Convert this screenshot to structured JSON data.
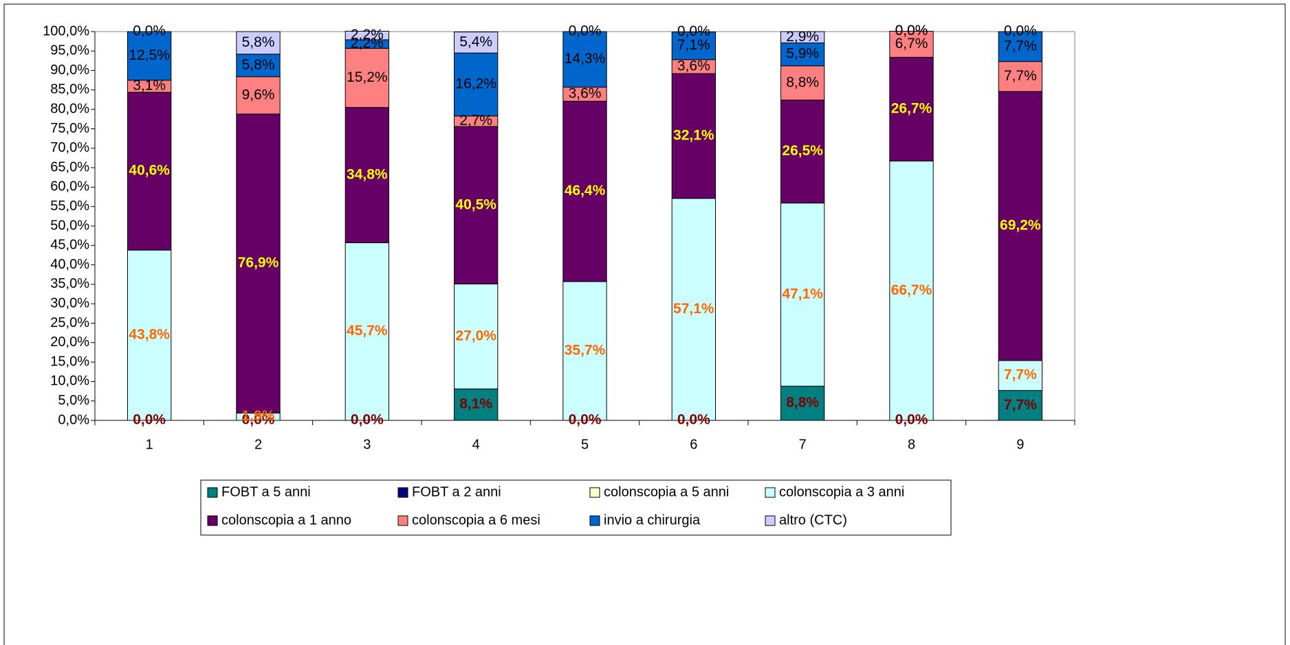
{
  "chart_data": {
    "type": "stacked_bar",
    "categories": [
      "1",
      "2",
      "3",
      "4",
      "5",
      "6",
      "7",
      "8",
      "9"
    ],
    "ylim": [
      0,
      100
    ],
    "yticks": [
      {
        "value": 0,
        "label": "0,0%"
      },
      {
        "value": 5,
        "label": "5,0%"
      },
      {
        "value": 10,
        "label": "10,0%"
      },
      {
        "value": 15,
        "label": "15,0%"
      },
      {
        "value": 20,
        "label": "20,0%"
      },
      {
        "value": 25,
        "label": "25,0%"
      },
      {
        "value": 30,
        "label": "30,0%"
      },
      {
        "value": 35,
        "label": "35,0%"
      },
      {
        "value": 40,
        "label": "40,0%"
      },
      {
        "value": 45,
        "label": "45,0%"
      },
      {
        "value": 50,
        "label": "50,0%"
      },
      {
        "value": 55,
        "label": "55,0%"
      },
      {
        "value": 60,
        "label": "60,0%"
      },
      {
        "value": 65,
        "label": "65,0%"
      },
      {
        "value": 70,
        "label": "70,0%"
      },
      {
        "value": 75,
        "label": "75,0%"
      },
      {
        "value": 80,
        "label": "80,0%"
      },
      {
        "value": 85,
        "label": "85,0%"
      },
      {
        "value": 90,
        "label": "90,0%"
      },
      {
        "value": 95,
        "label": "95,0%"
      },
      {
        "value": 100,
        "label": "100,0%"
      }
    ],
    "legend": "bottom",
    "series": [
      {
        "name": "FOBT a 5 anni",
        "color": "#008080",
        "label_color": "#800000",
        "label_weight": "bold",
        "values": [
          0,
          0,
          0,
          8.1,
          0,
          0,
          8.8,
          0,
          7.7
        ],
        "value_labels": [
          "0,0%",
          "0,0%",
          "0,0%",
          "8,1%",
          "0,0%",
          "0,0%",
          "8,8%",
          "0,0%",
          "7,7%"
        ]
      },
      {
        "name": "FOBT a 2 anni",
        "color": "#000080",
        "values": [
          0,
          0,
          0,
          0,
          0,
          0,
          0,
          0,
          0
        ]
      },
      {
        "name": "colonscopia a 5 anni",
        "color": "#FFFFCC",
        "values": [
          0,
          0,
          0,
          0,
          0,
          0,
          0,
          0,
          0
        ]
      },
      {
        "name": "colonscopia a 3 anni",
        "color": "#CCFFFF",
        "label_color": "#FF6600",
        "label_weight": "bold",
        "values": [
          43.8,
          1.9,
          45.7,
          27.0,
          35.7,
          57.1,
          47.1,
          66.7,
          7.7
        ],
        "value_labels": [
          "43,8%",
          "1,9%",
          "45,7%",
          "27,0%",
          "35,7%",
          "57,1%",
          "47,1%",
          "66,7%",
          "7,7%"
        ]
      },
      {
        "name": "colonscopia a 1 anno",
        "color": "#660066",
        "label_color": "#FFFF00",
        "label_weight": "bold",
        "values": [
          40.6,
          76.9,
          34.8,
          40.5,
          46.4,
          32.1,
          26.5,
          26.7,
          69.2
        ],
        "value_labels": [
          "40,6%",
          "76,9%",
          "34,8%",
          "40,5%",
          "46,4%",
          "32,1%",
          "26,5%",
          "26,7%",
          "69,2%"
        ]
      },
      {
        "name": "colonscopia a 6 mesi",
        "color": "#FF8080",
        "label_color": "#000000",
        "label_weight": "normal",
        "values": [
          3.1,
          9.6,
          15.2,
          2.7,
          3.6,
          3.6,
          8.8,
          6.7,
          7.7
        ],
        "value_labels": [
          "3,1%",
          "9,6%",
          "15,2%",
          "2,7%",
          "3,6%",
          "3,6%",
          "8,8%",
          "6,7%",
          "7,7%"
        ]
      },
      {
        "name": "invio a chirurgia",
        "color": "#0066CC",
        "label_color": "#000000",
        "label_weight": "normal",
        "values": [
          12.5,
          5.8,
          2.2,
          16.2,
          14.3,
          7.1,
          5.9,
          0,
          7.7
        ],
        "value_labels": [
          "12,5%",
          "5,8%",
          "2,2%",
          "16,2%",
          "14,3%",
          "7,1%",
          "5,9%",
          "0,0%",
          "7,7%"
        ]
      },
      {
        "name": "altro (CTC)",
        "color": "#CCCCFF",
        "label_color": "#000000",
        "label_weight": "normal",
        "values": [
          0,
          5.8,
          2.2,
          5.4,
          0,
          0,
          2.9,
          0,
          0
        ],
        "value_labels": [
          "0,0%",
          "5,8%",
          "2,2%",
          "5,4%",
          "0,0%",
          "0,0%",
          "2,9%",
          "0,0%",
          "0,0%"
        ]
      }
    ]
  }
}
